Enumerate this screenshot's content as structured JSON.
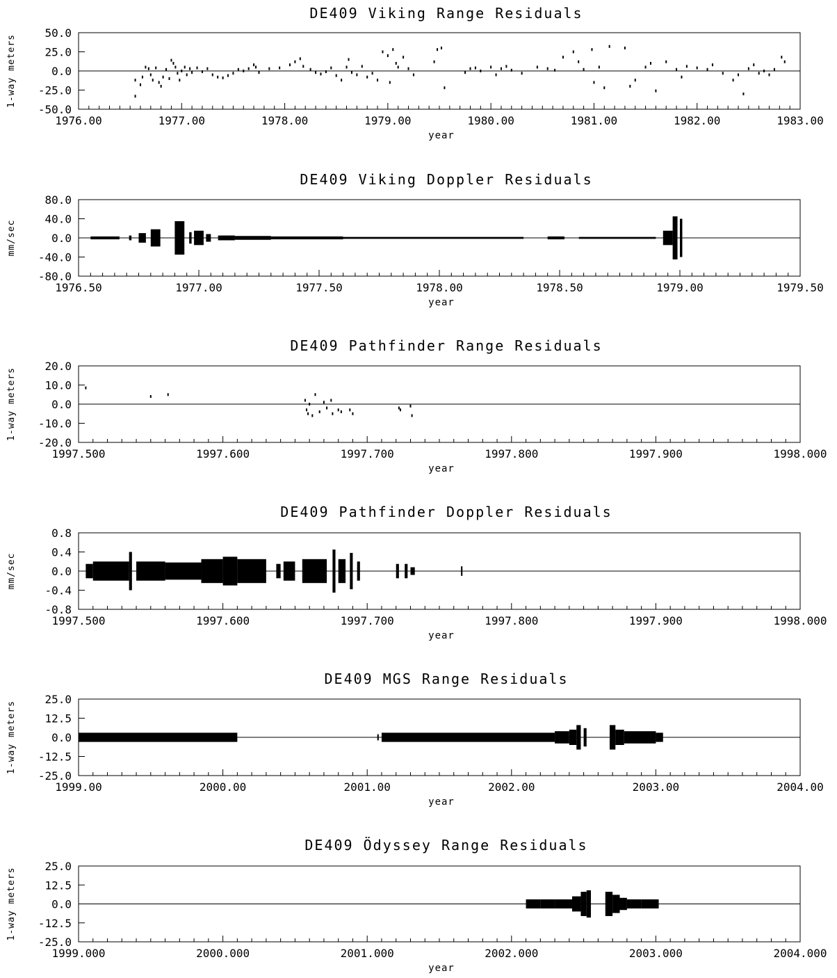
{
  "chart_data": [
    {
      "type": "scatter",
      "title": "DE409 Viking Range Residuals",
      "xlabel": "year",
      "ylabel": "1-way meters",
      "xlim": [
        1976.0,
        1983.0
      ],
      "ylim": [
        -50.0,
        50.0
      ],
      "x_ticks": [
        "1976.00",
        "1977.00",
        "1978.00",
        "1979.00",
        "1980.00",
        "1981.00",
        "1982.00",
        "1983.00"
      ],
      "y_ticks": [
        "50.0",
        "25.0",
        "0.0",
        "-25.0",
        "-50.0"
      ],
      "zero_line": true,
      "series": [
        {
          "mode": "points",
          "points": [
            [
              1976.55,
              -33
            ],
            [
              1976.55,
              -12
            ],
            [
              1976.6,
              -18
            ],
            [
              1976.62,
              -8
            ],
            [
              1976.65,
              5
            ],
            [
              1976.68,
              3
            ],
            [
              1976.7,
              -5
            ],
            [
              1976.72,
              -12
            ],
            [
              1976.75,
              4
            ],
            [
              1976.78,
              -15
            ],
            [
              1976.8,
              -20
            ],
            [
              1976.82,
              -8
            ],
            [
              1976.85,
              2
            ],
            [
              1976.88,
              -10
            ],
            [
              1976.9,
              14
            ],
            [
              1976.92,
              10
            ],
            [
              1976.94,
              5
            ],
            [
              1976.96,
              -3
            ],
            [
              1976.98,
              -12
            ],
            [
              1977.0,
              0
            ],
            [
              1977.03,
              5
            ],
            [
              1977.05,
              -5
            ],
            [
              1977.08,
              3
            ],
            [
              1977.1,
              -2
            ],
            [
              1977.15,
              4
            ],
            [
              1977.2,
              -1
            ],
            [
              1977.25,
              3
            ],
            [
              1977.3,
              -5
            ],
            [
              1977.35,
              -8
            ],
            [
              1977.4,
              -9
            ],
            [
              1977.45,
              -6
            ],
            [
              1977.5,
              -3
            ],
            [
              1977.55,
              2
            ],
            [
              1977.6,
              0
            ],
            [
              1977.65,
              3
            ],
            [
              1977.7,
              8
            ],
            [
              1977.72,
              5
            ],
            [
              1977.75,
              -2
            ],
            [
              1977.85,
              3
            ],
            [
              1977.95,
              4
            ],
            [
              1978.05,
              8
            ],
            [
              1978.1,
              12
            ],
            [
              1978.15,
              16
            ],
            [
              1978.18,
              6
            ],
            [
              1978.25,
              2
            ],
            [
              1978.3,
              -2
            ],
            [
              1978.35,
              -4
            ],
            [
              1978.4,
              -1
            ],
            [
              1978.45,
              4
            ],
            [
              1978.5,
              -6
            ],
            [
              1978.55,
              -12
            ],
            [
              1978.6,
              5
            ],
            [
              1978.62,
              15
            ],
            [
              1978.65,
              -2
            ],
            [
              1978.7,
              -5
            ],
            [
              1978.75,
              6
            ],
            [
              1978.8,
              -8
            ],
            [
              1978.85,
              -3
            ],
            [
              1978.9,
              -12
            ],
            [
              1978.95,
              25
            ],
            [
              1979.0,
              20
            ],
            [
              1979.02,
              -15
            ],
            [
              1979.05,
              28
            ],
            [
              1979.08,
              10
            ],
            [
              1979.1,
              5
            ],
            [
              1979.15,
              18
            ],
            [
              1979.2,
              3
            ],
            [
              1979.25,
              -5
            ],
            [
              1979.45,
              12
            ],
            [
              1979.48,
              28
            ],
            [
              1979.52,
              30
            ],
            [
              1979.55,
              -22
            ],
            [
              1979.75,
              -2
            ],
            [
              1979.8,
              3
            ],
            [
              1979.85,
              4
            ],
            [
              1979.9,
              0
            ],
            [
              1980.0,
              5
            ],
            [
              1980.05,
              -5
            ],
            [
              1980.1,
              3
            ],
            [
              1980.15,
              6
            ],
            [
              1980.2,
              1
            ],
            [
              1980.3,
              -3
            ],
            [
              1980.45,
              5
            ],
            [
              1980.55,
              3
            ],
            [
              1980.62,
              1
            ],
            [
              1980.7,
              18
            ],
            [
              1980.8,
              25
            ],
            [
              1980.85,
              12
            ],
            [
              1980.9,
              2
            ],
            [
              1980.98,
              28
            ],
            [
              1981.0,
              -15
            ],
            [
              1981.05,
              5
            ],
            [
              1981.1,
              -22
            ],
            [
              1981.15,
              32
            ],
            [
              1981.3,
              30
            ],
            [
              1981.35,
              -20
            ],
            [
              1981.4,
              -12
            ],
            [
              1981.5,
              5
            ],
            [
              1981.55,
              10
            ],
            [
              1981.6,
              -26
            ],
            [
              1981.7,
              12
            ],
            [
              1981.8,
              2
            ],
            [
              1981.85,
              -8
            ],
            [
              1981.9,
              6
            ],
            [
              1982.0,
              4
            ],
            [
              1982.1,
              2
            ],
            [
              1982.15,
              8
            ],
            [
              1982.25,
              -3
            ],
            [
              1982.35,
              -12
            ],
            [
              1982.4,
              -5
            ],
            [
              1982.45,
              -30
            ],
            [
              1982.5,
              3
            ],
            [
              1982.55,
              8
            ],
            [
              1982.6,
              -3
            ],
            [
              1982.65,
              0
            ],
            [
              1982.7,
              -5
            ],
            [
              1982.75,
              2
            ],
            [
              1982.82,
              18
            ],
            [
              1982.85,
              12
            ]
          ]
        }
      ]
    },
    {
      "type": "scatter",
      "title": "DE409 Viking Doppler Residuals",
      "xlabel": "year",
      "ylabel": "mm/sec",
      "xlim": [
        1976.5,
        1979.5
      ],
      "ylim": [
        -80.0,
        80.0
      ],
      "x_ticks": [
        "1976.50",
        "1977.00",
        "1977.50",
        "1978.00",
        "1978.50",
        "1979.00",
        "1979.50"
      ],
      "y_ticks": [
        "80.0",
        "40.0",
        "0.0",
        "-40.0",
        "-80.0"
      ],
      "zero_line": true,
      "series": [
        {
          "mode": "bands",
          "bands": [
            [
              1976.55,
              1976.67,
              3
            ],
            [
              1976.71,
              1976.72,
              5
            ],
            [
              1976.75,
              1976.78,
              10
            ],
            [
              1976.8,
              1976.84,
              18
            ],
            [
              1976.9,
              1976.94,
              35
            ],
            [
              1976.96,
              1976.97,
              12
            ],
            [
              1976.98,
              1977.02,
              15
            ],
            [
              1977.03,
              1977.05,
              8
            ],
            [
              1977.08,
              1977.15,
              5
            ],
            [
              1977.15,
              1977.3,
              4
            ],
            [
              1977.3,
              1977.6,
              3
            ],
            [
              1977.6,
              1978.0,
              2
            ],
            [
              1978.0,
              1978.35,
              2
            ],
            [
              1978.45,
              1978.52,
              3
            ],
            [
              1978.58,
              1978.9,
              2
            ],
            [
              1978.93,
              1978.97,
              15
            ],
            [
              1978.97,
              1978.99,
              45
            ],
            [
              1979.0,
              1979.01,
              40
            ]
          ]
        }
      ]
    },
    {
      "type": "scatter",
      "title": "DE409 Pathfinder Range Residuals",
      "xlabel": "year",
      "ylabel": "1-way meters",
      "xlim": [
        1997.5,
        1998.0
      ],
      "ylim": [
        -20.0,
        20.0
      ],
      "x_ticks": [
        "1997.500",
        "1997.600",
        "1997.700",
        "1997.800",
        "1997.900",
        "1998.000"
      ],
      "y_ticks": [
        "20.0",
        "10.0",
        "0.0",
        "-10.0",
        "-20.0"
      ],
      "zero_line": true,
      "series": [
        {
          "mode": "points",
          "points": [
            [
              1997.505,
              8.5
            ],
            [
              1997.55,
              4
            ],
            [
              1997.562,
              5
            ],
            [
              1997.657,
              2
            ],
            [
              1997.658,
              -3
            ],
            [
              1997.659,
              -5
            ],
            [
              1997.66,
              0
            ],
            [
              1997.662,
              -6
            ],
            [
              1997.664,
              5
            ],
            [
              1997.667,
              -4
            ],
            [
              1997.67,
              1
            ],
            [
              1997.672,
              -2
            ],
            [
              1997.675,
              2
            ],
            [
              1997.676,
              -5
            ],
            [
              1997.68,
              -3
            ],
            [
              1997.682,
              -4
            ],
            [
              1997.688,
              -3
            ],
            [
              1997.69,
              -5
            ],
            [
              1997.722,
              -2
            ],
            [
              1997.723,
              -3
            ],
            [
              1997.73,
              -1
            ],
            [
              1997.731,
              -6
            ]
          ]
        }
      ]
    },
    {
      "type": "scatter",
      "title": "DE409 Pathfinder Doppler Residuals",
      "xlabel": "year",
      "ylabel": "mm/sec",
      "xlim": [
        1997.5,
        1998.0
      ],
      "ylim": [
        -0.8,
        0.8
      ],
      "x_ticks": [
        "1997.500",
        "1997.600",
        "1997.700",
        "1997.800",
        "1997.900",
        "1998.000"
      ],
      "y_ticks": [
        "0.8",
        "0.4",
        "0.0",
        "-0.4",
        "-0.8"
      ],
      "zero_line": true,
      "series": [
        {
          "mode": "bands",
          "bands": [
            [
              1997.505,
              1997.51,
              0.15
            ],
            [
              1997.51,
              1997.535,
              0.2
            ],
            [
              1997.535,
              1997.537,
              0.4
            ],
            [
              1997.54,
              1997.56,
              0.2
            ],
            [
              1997.56,
              1997.585,
              0.18
            ],
            [
              1997.585,
              1997.6,
              0.25
            ],
            [
              1997.6,
              1997.61,
              0.3
            ],
            [
              1997.61,
              1997.63,
              0.25
            ],
            [
              1997.637,
              1997.64,
              0.15
            ],
            [
              1997.642,
              1997.65,
              0.2
            ],
            [
              1997.655,
              1997.672,
              0.25
            ],
            [
              1997.676,
              1997.678,
              0.45
            ],
            [
              1997.68,
              1997.685,
              0.25
            ],
            [
              1997.688,
              1997.69,
              0.38
            ],
            [
              1997.693,
              1997.695,
              0.2
            ],
            [
              1997.72,
              1997.722,
              0.15
            ],
            [
              1997.726,
              1997.728,
              0.15
            ],
            [
              1997.73,
              1997.733,
              0.08
            ],
            [
              1997.765,
              1997.766,
              0.1
            ]
          ]
        }
      ]
    },
    {
      "type": "scatter",
      "title": "DE409 MGS Range Residuals",
      "xlabel": "year",
      "ylabel": "1-way meters",
      "xlim": [
        1999.0,
        2004.0
      ],
      "ylim": [
        -25.0,
        25.0
      ],
      "x_ticks": [
        "1999.00",
        "2000.00",
        "2001.00",
        "2002.00",
        "2003.00",
        "2004.00"
      ],
      "y_ticks": [
        "25.0",
        "12.5",
        "0.0",
        "-12.5",
        "-25.0"
      ],
      "zero_line": true,
      "series": [
        {
          "mode": "bands",
          "bands": [
            [
              1999.0,
              2000.1,
              3
            ],
            [
              2001.07,
              2001.08,
              2
            ],
            [
              2001.1,
              2002.3,
              3
            ],
            [
              2002.3,
              2002.4,
              4
            ],
            [
              2002.4,
              2002.45,
              5
            ],
            [
              2002.45,
              2002.48,
              8
            ],
            [
              2002.5,
              2002.52,
              6
            ],
            [
              2002.68,
              2002.72,
              8
            ],
            [
              2002.72,
              2002.78,
              5
            ],
            [
              2002.78,
              2003.0,
              4
            ],
            [
              2003.0,
              2003.05,
              3
            ]
          ]
        }
      ]
    },
    {
      "type": "scatter",
      "title": "DE409 Ödyssey Range Residuals",
      "xlabel": "year",
      "ylabel": "1-way meters",
      "xlim": [
        1999.0,
        2004.0
      ],
      "ylim": [
        -25.0,
        25.0
      ],
      "x_ticks": [
        "1999.000",
        "2000.000",
        "2001.000",
        "2002.000",
        "2003.000",
        "2004.000"
      ],
      "y_ticks": [
        "25.0",
        "12.5",
        "0.0",
        "-12.5",
        "-25.0"
      ],
      "zero_line": true,
      "series": [
        {
          "mode": "bands",
          "bands": [
            [
              2002.1,
              2002.2,
              3
            ],
            [
              2002.2,
              2002.3,
              3
            ],
            [
              2002.3,
              2002.42,
              3
            ],
            [
              2002.42,
              2002.48,
              5
            ],
            [
              2002.48,
              2002.52,
              8
            ],
            [
              2002.52,
              2002.55,
              9
            ],
            [
              2002.65,
              2002.7,
              8
            ],
            [
              2002.7,
              2002.75,
              6
            ],
            [
              2002.75,
              2002.8,
              4
            ],
            [
              2002.8,
              2002.9,
              3
            ],
            [
              2002.9,
              2003.02,
              3
            ]
          ]
        }
      ]
    }
  ]
}
